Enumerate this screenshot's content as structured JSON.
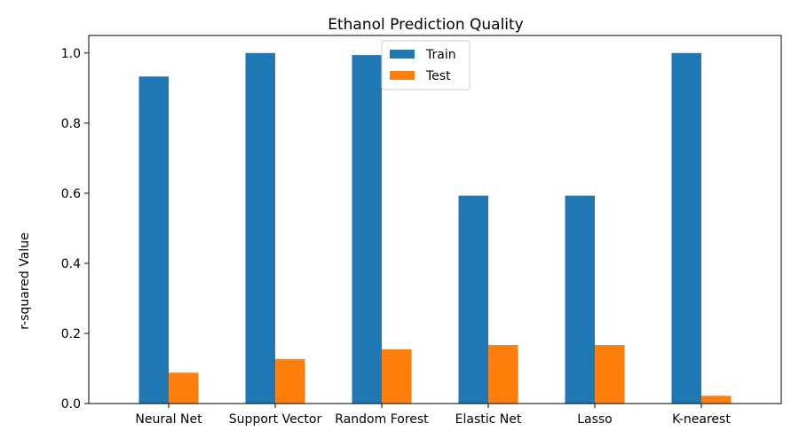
{
  "chart_data": {
    "type": "bar",
    "title": "Ethanol Prediction Quality",
    "xlabel": "",
    "ylabel": "r-squared Value",
    "categories": [
      "Neural Net",
      "Support Vector",
      "Random Forest",
      "Elastic Net",
      "Lasso",
      "K-nearest"
    ],
    "series": [
      {
        "name": "Train",
        "color": "#1f77b4",
        "values": [
          0.933,
          1.0,
          0.994,
          0.593,
          0.593,
          1.0
        ]
      },
      {
        "name": "Test",
        "color": "#ff7f0e",
        "values": [
          0.088,
          0.127,
          0.155,
          0.167,
          0.167,
          0.022
        ]
      }
    ],
    "ylim": [
      0,
      1.05
    ],
    "yticks": [
      "0.0",
      "0.2",
      "0.4",
      "0.6",
      "0.8",
      "1.0"
    ],
    "grid": false,
    "legend_position": "upper-center"
  }
}
